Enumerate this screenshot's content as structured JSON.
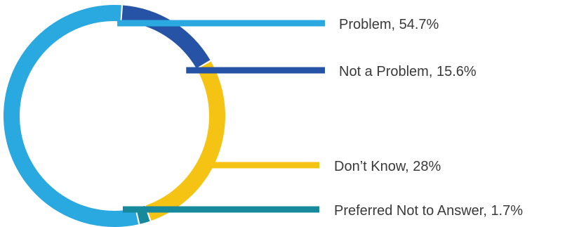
{
  "chart_data": {
    "type": "pie",
    "style": "donut",
    "slices": [
      {
        "label": "Problem, 54.7%",
        "category": "Problem",
        "value": 54.7,
        "color": "#2aa8e0"
      },
      {
        "label": "Not a Problem, 15.6%",
        "category": "Not a Problem",
        "value": 15.6,
        "color": "#2653a6"
      },
      {
        "label": "Don’t Know, 28%",
        "category": "Don’t Know",
        "value": 28,
        "color": "#f5c314"
      },
      {
        "label": "Preferred Not to Answer, 1.7%",
        "category": "Preferred Not to Answer",
        "value": 1.7,
        "color": "#168a9c"
      }
    ],
    "legend_placement": "right, leader lines"
  }
}
